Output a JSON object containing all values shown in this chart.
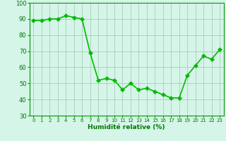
{
  "x": [
    0,
    1,
    2,
    3,
    4,
    5,
    6,
    7,
    8,
    9,
    10,
    11,
    12,
    13,
    14,
    15,
    16,
    17,
    18,
    19,
    20,
    21,
    22,
    23
  ],
  "y": [
    89,
    89,
    90,
    90,
    92,
    91,
    90,
    69,
    52,
    53,
    52,
    46,
    50,
    46,
    47,
    45,
    43,
    41,
    41,
    55,
    61,
    67,
    65,
    71
  ],
  "line_color": "#00bb00",
  "marker_color": "#00bb00",
  "bg_color": "#d5f5e8",
  "grid_color": "#aaccbb",
  "xlabel": "Humidité relative (%)",
  "xlim": [
    -0.5,
    23.5
  ],
  "ylim": [
    30,
    100
  ],
  "yticks": [
    30,
    40,
    50,
    60,
    70,
    80,
    90,
    100
  ],
  "xlabel_color": "#007700",
  "tick_color": "#007700",
  "line_width": 1.2,
  "marker_size": 3,
  "marker_style": "D"
}
